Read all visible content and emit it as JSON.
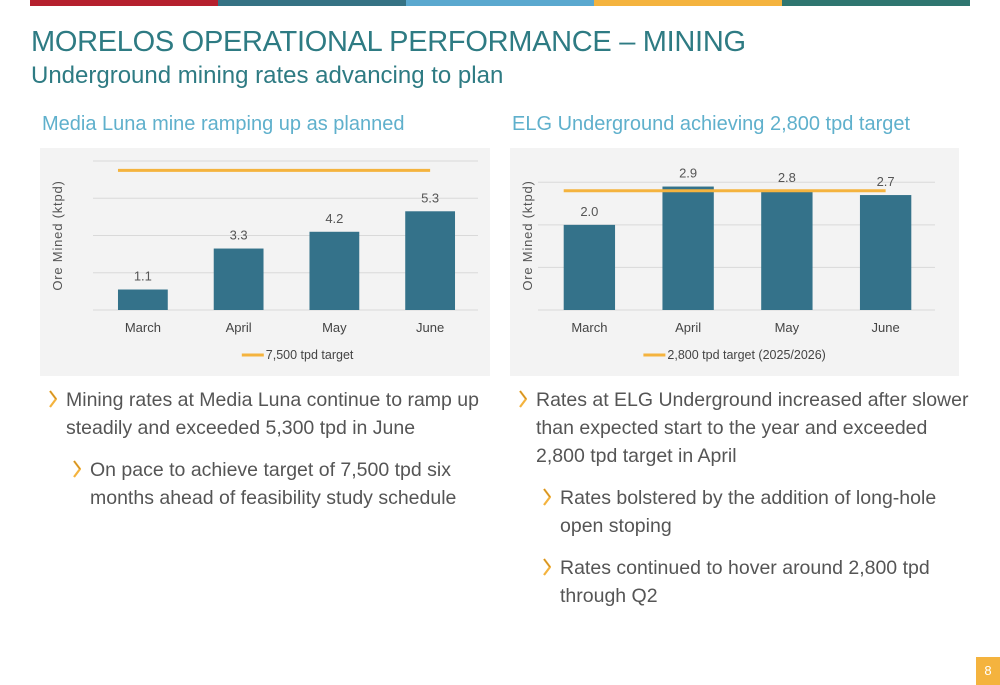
{
  "header": {
    "title": "MORELOS OPERATIONAL PERFORMANCE – MINING",
    "subtitle": "Underground mining rates advancing to plan",
    "bar_colors": [
      "#b5202e",
      "#357284",
      "#5aa8cf",
      "#f4b33e",
      "#2f7670"
    ]
  },
  "page_number": "8",
  "colors": {
    "bar": "#34728a",
    "target_line": "#f4b33e",
    "title": "#2e7b83",
    "panel_title": "#5fb0cc"
  },
  "left": {
    "heading": "Media Luna mine ramping up as planned",
    "bullets": [
      {
        "level": 1,
        "text_lines": [
          "Mining rates at Media Luna continue to ramp up",
          "steadily and exceeded 5,300 tpd in June"
        ]
      },
      {
        "level": 2,
        "text_lines": [
          "On pace to achieve target of 7,500 tpd six",
          "months ahead of feasibility study schedule"
        ]
      }
    ]
  },
  "right": {
    "heading": "ELG Underground achieving 2,800 tpd target",
    "bullets": [
      {
        "level": 1,
        "text_lines": [
          "Rates at ELG Underground increased after slower",
          "than expected start to the year and exceeded",
          "2,800 tpd target in April"
        ]
      },
      {
        "level": 2,
        "text_lines": [
          "Rates bolstered by the addition of long-hole",
          "open stoping"
        ]
      },
      {
        "level": 2,
        "text_lines": [
          "Rates continued to hover around 2,800 tpd",
          "through Q2"
        ]
      }
    ]
  },
  "chart_data": [
    {
      "type": "bar",
      "title": "Media Luna mine ramping up as planned",
      "categories": [
        "March",
        "April",
        "May",
        "June"
      ],
      "values": [
        1.1,
        3.3,
        4.2,
        5.3
      ],
      "data_labels": [
        "1.1",
        "3.3",
        "4.2",
        "5.3"
      ],
      "ylabel": "Ore Mined (ktpd)",
      "ylim": [
        0,
        8
      ],
      "grid": true,
      "target": {
        "name": "7,500 tpd target",
        "value": 7.5
      },
      "legend": "bottom"
    },
    {
      "type": "bar",
      "title": "ELG Underground achieving 2,800 tpd target",
      "categories": [
        "March",
        "April",
        "May",
        "June"
      ],
      "values": [
        2.0,
        2.9,
        2.8,
        2.7
      ],
      "data_labels": [
        "2.0",
        "2.9",
        "2.8",
        "2.7"
      ],
      "ylabel": "Ore Mined (ktpd)",
      "ylim": [
        0,
        3.5
      ],
      "grid": true,
      "target": {
        "name": "2,800 tpd target (2025/2026)",
        "value": 2.8
      },
      "legend": "bottom"
    }
  ]
}
